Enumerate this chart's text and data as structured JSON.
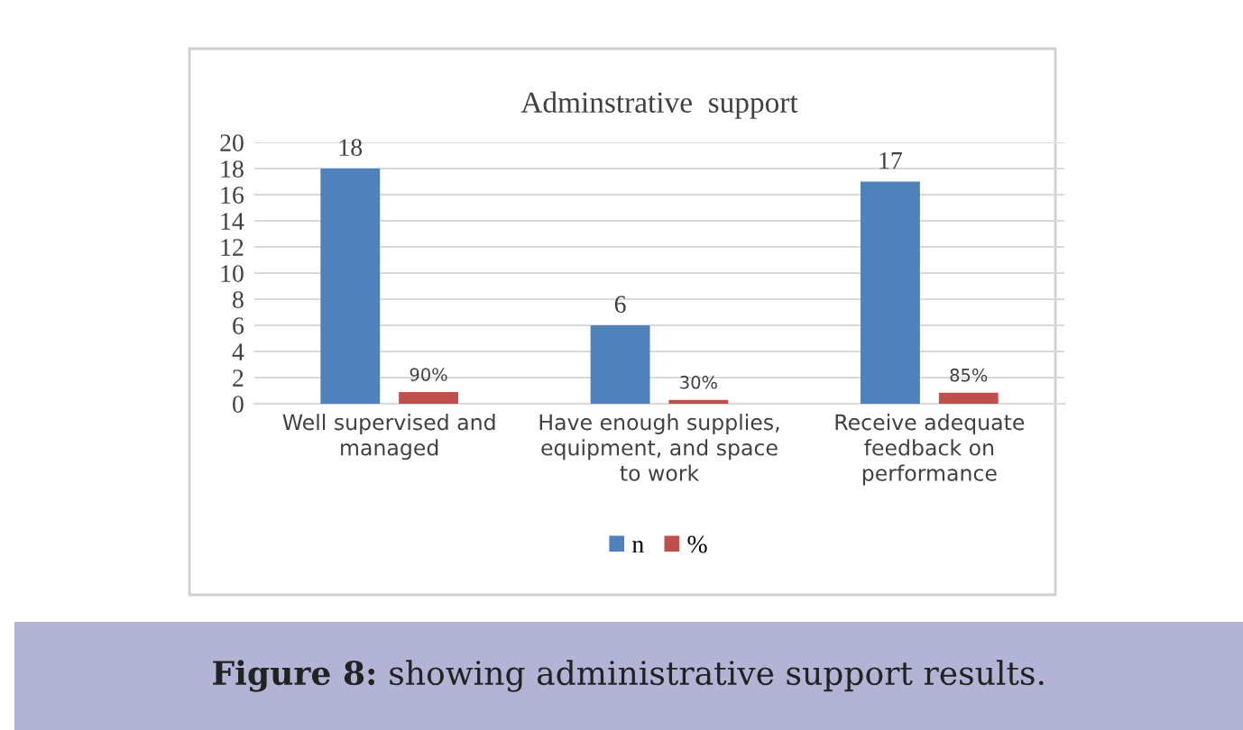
{
  "chart_data": {
    "type": "bar",
    "title": "Adminstrative  support",
    "categories": [
      "Well supervised and managed",
      "Have enough supplies, equipment, and space to work",
      "Receive adequate feedback on performance"
    ],
    "series": [
      {
        "name": "n",
        "color": "#4f81bd",
        "values": [
          18,
          6,
          17
        ],
        "value_labels": [
          "18",
          "6",
          "17"
        ]
      },
      {
        "name": "%",
        "color": "#c0504d",
        "values": [
          0.9,
          0.3,
          0.85
        ],
        "value_labels": [
          "90%",
          "30%",
          "85%"
        ]
      }
    ],
    "ylim": [
      0,
      20
    ],
    "yticks": [
      0,
      2,
      4,
      6,
      8,
      10,
      12,
      14,
      16,
      18,
      20
    ],
    "grid": "y",
    "legend": "bottom",
    "annotations": [
      "Figure 8:",
      "showing administrative support results."
    ]
  }
}
